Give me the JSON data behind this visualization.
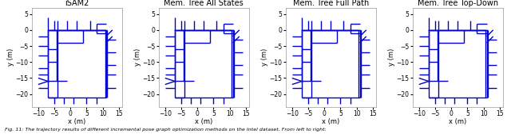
{
  "titles": [
    "iSAM2",
    "Mem. Tree All States",
    "Mem. Tree Full Path",
    "Mem. Tree Top-Down"
  ],
  "xlabel": "x (m)",
  "ylabel": "y (m)",
  "xlim": [
    -12,
    16
  ],
  "ylim": [
    -24,
    7
  ],
  "xticks": [
    -10,
    -5,
    0,
    5,
    10,
    15
  ],
  "yticks": [
    -20,
    -15,
    -10,
    -5,
    0,
    5
  ],
  "line_color": "#0000CD",
  "bg_color": "#f2f2f2",
  "fig_caption": "Fig. 11: The trajectory results of different incremental pose graph optimization methods on the Intel dataset. From left to right:",
  "title_fontsize": 7,
  "label_fontsize": 6,
  "tick_fontsize": 5.5,
  "lw": 1.0
}
